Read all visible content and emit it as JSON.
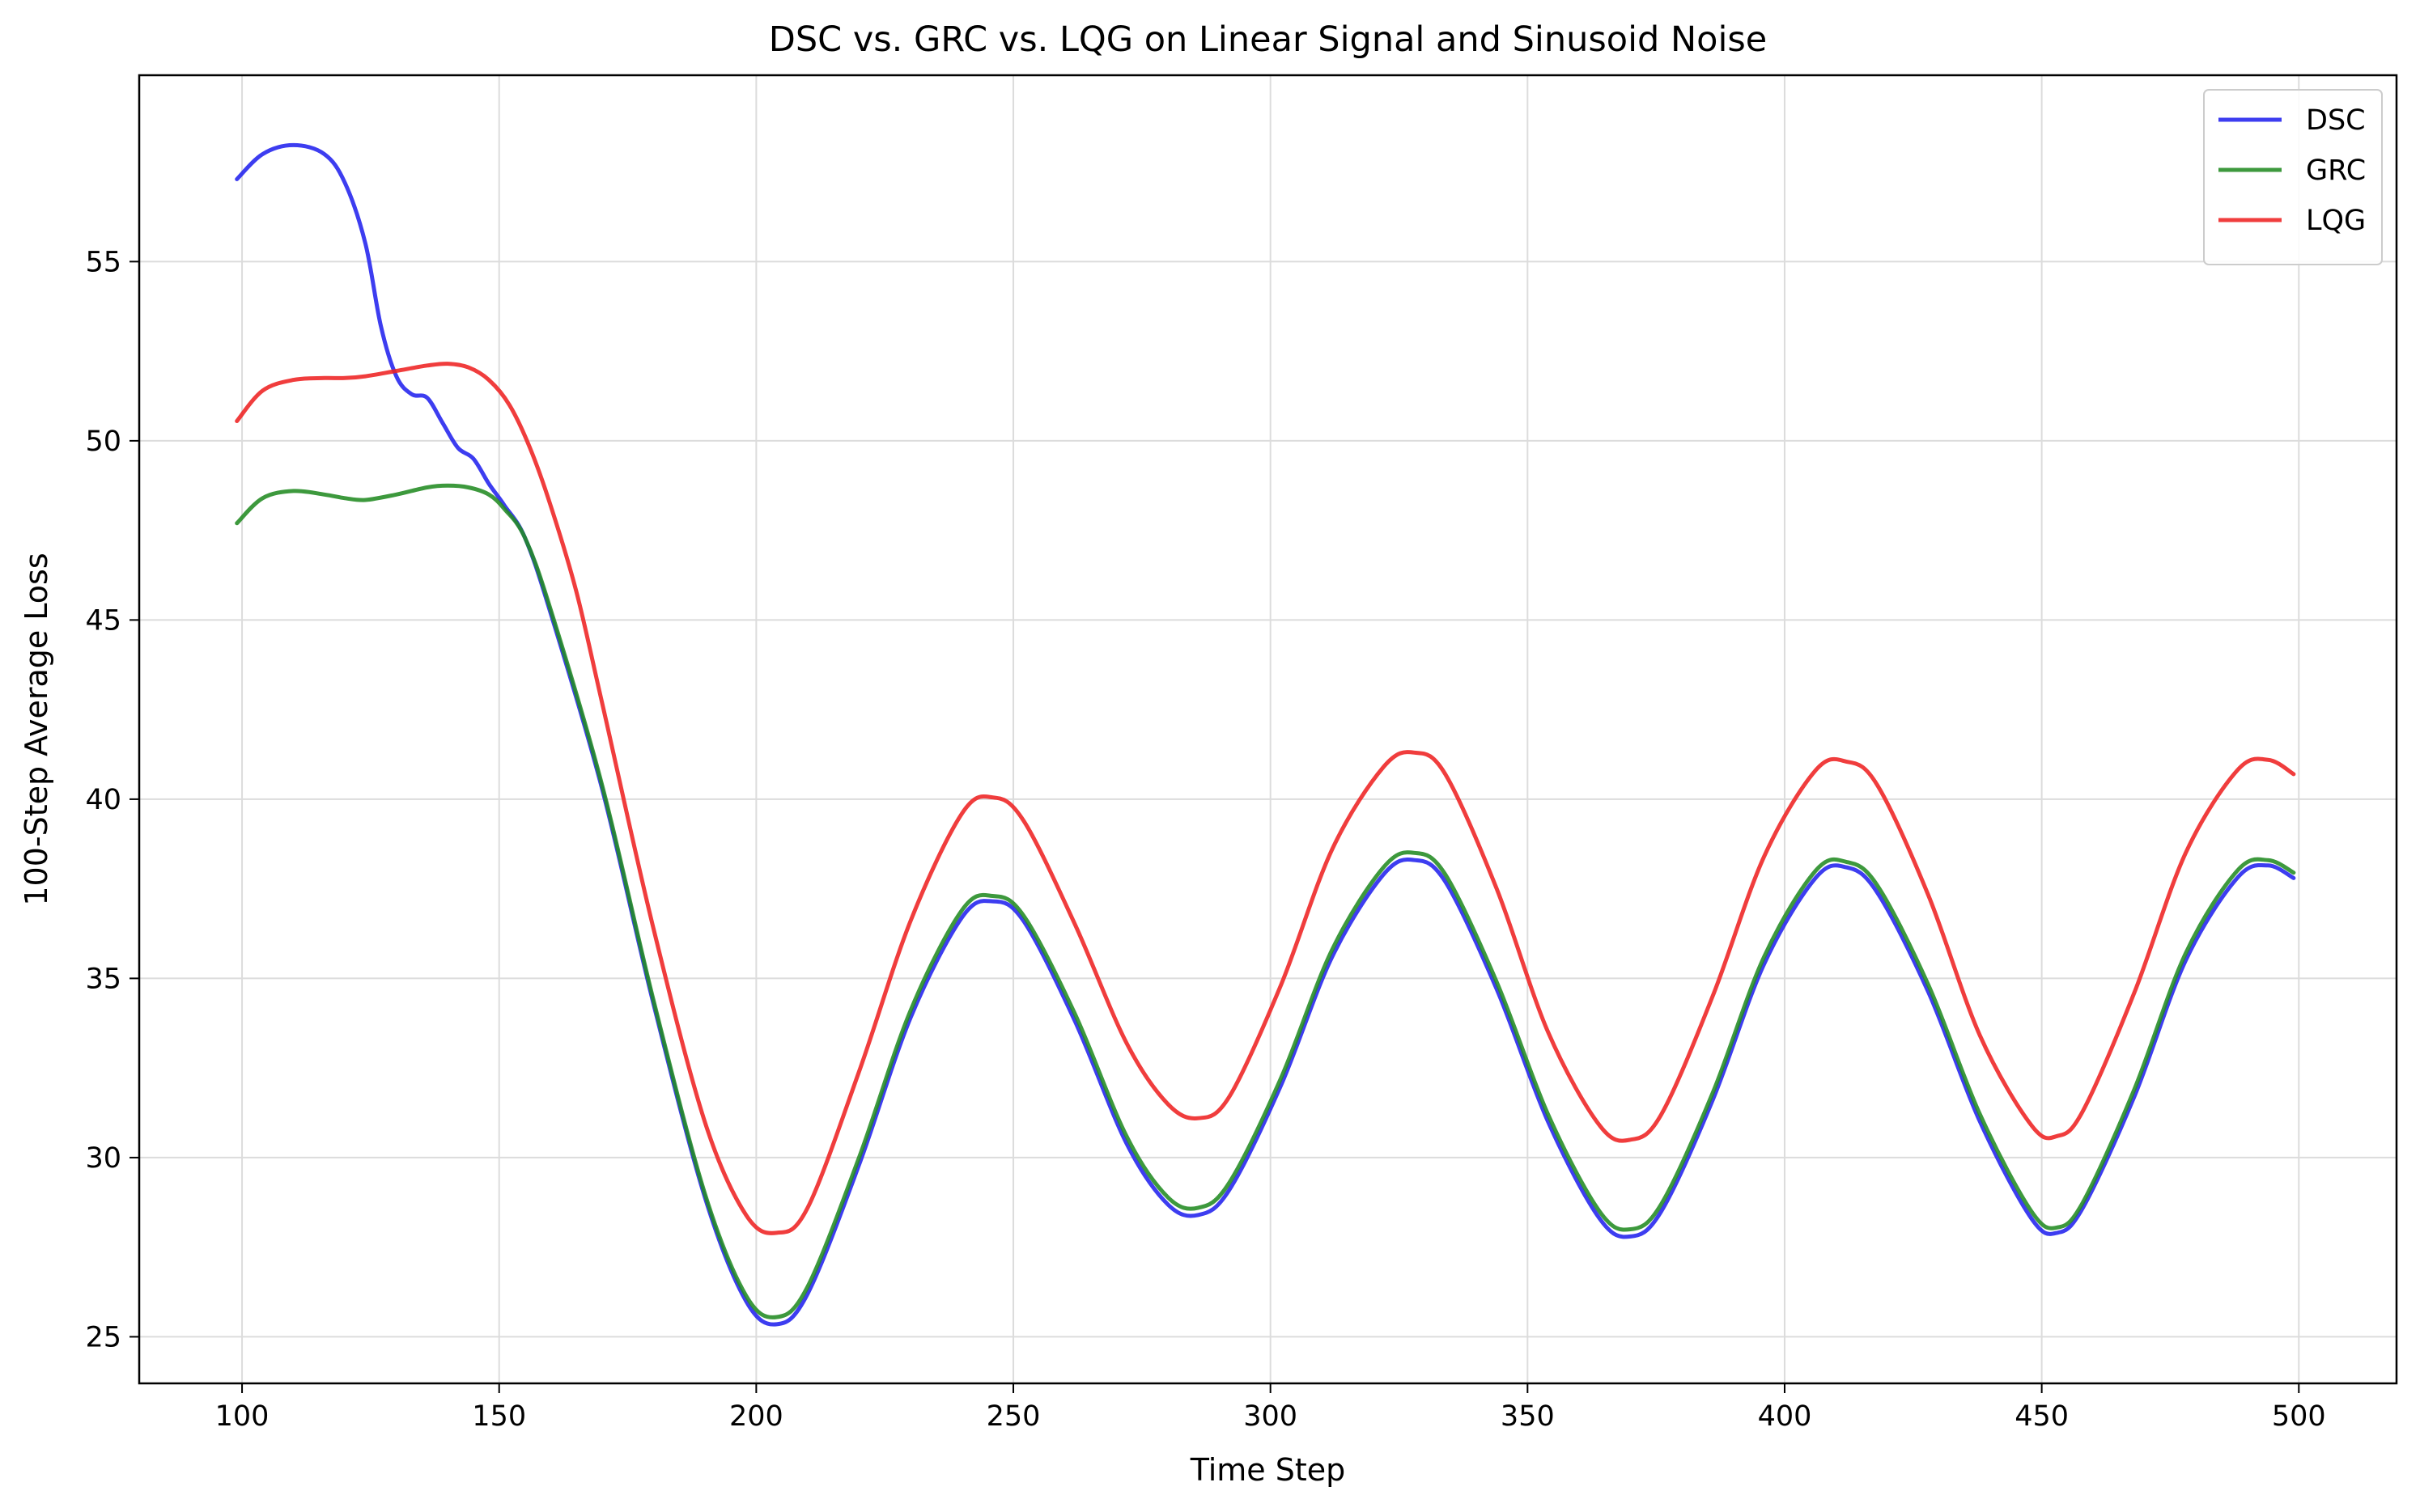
{
  "chart_data": {
    "type": "line",
    "title": "DSC vs. GRC vs. LQG on Linear Signal and Sinusoid Noise",
    "xlabel": "Time Step",
    "ylabel": "100-Step Average Loss",
    "xlim": [
      80,
      519
    ],
    "ylim": [
      23.7,
      60.2
    ],
    "xticks": [
      100,
      150,
      200,
      250,
      300,
      350,
      400,
      450,
      500
    ],
    "yticks": [
      25,
      30,
      35,
      40,
      45,
      50,
      55
    ],
    "grid": true,
    "legend_position": "top-right",
    "series": [
      {
        "name": "DSC",
        "color": "#2222ee",
        "x": [
          99,
          104,
          110,
          116,
          120,
          124,
          127,
          130,
          133,
          136,
          139,
          142,
          145,
          148,
          151,
          155,
          160,
          170,
          180,
          190,
          198,
          204,
          210,
          220,
          230,
          240,
          246,
          252,
          262,
          272,
          280,
          286,
          292,
          302,
          312,
          322,
          328,
          334,
          344,
          354,
          364,
          370,
          376,
          386,
          396,
          406,
          412,
          418,
          428,
          438,
          448,
          453,
          458,
          468,
          478,
          488,
          494,
          499
        ],
        "y": [
          57.3,
          58.0,
          58.25,
          58.0,
          57.2,
          55.5,
          53.2,
          51.8,
          51.3,
          51.2,
          50.5,
          49.8,
          49.5,
          48.8,
          48.2,
          47.3,
          45.2,
          40.3,
          34.3,
          28.9,
          26.0,
          25.35,
          26.2,
          29.8,
          33.9,
          36.7,
          37.15,
          36.6,
          33.8,
          30.4,
          28.7,
          28.4,
          29.1,
          32.0,
          35.6,
          37.9,
          38.3,
          37.7,
          34.7,
          31.0,
          28.3,
          27.8,
          28.5,
          31.6,
          35.4,
          37.8,
          38.1,
          37.4,
          34.6,
          31.0,
          28.3,
          27.9,
          28.6,
          31.7,
          35.5,
          37.8,
          38.15,
          37.8
        ]
      },
      {
        "name": "GRC",
        "color": "#228b22",
        "x": [
          99,
          104,
          110,
          116,
          120,
          124,
          130,
          136,
          140,
          144,
          148,
          151,
          155,
          160,
          170,
          180,
          190,
          198,
          204,
          210,
          220,
          230,
          240,
          246,
          252,
          262,
          272,
          280,
          286,
          292,
          302,
          312,
          322,
          328,
          334,
          344,
          354,
          364,
          370,
          376,
          386,
          396,
          406,
          412,
          418,
          428,
          438,
          448,
          453,
          458,
          468,
          478,
          488,
          494,
          499
        ],
        "y": [
          47.7,
          48.4,
          48.6,
          48.5,
          48.4,
          48.35,
          48.5,
          48.7,
          48.75,
          48.7,
          48.5,
          48.1,
          47.3,
          45.3,
          40.4,
          34.4,
          29.0,
          26.15,
          25.55,
          26.4,
          30.0,
          34.1,
          36.9,
          37.3,
          36.75,
          34.0,
          30.6,
          28.9,
          28.6,
          29.3,
          32.2,
          35.8,
          38.1,
          38.5,
          37.9,
          34.9,
          31.2,
          28.5,
          28.0,
          28.7,
          31.8,
          35.6,
          38.0,
          38.25,
          37.6,
          34.8,
          31.2,
          28.5,
          28.05,
          28.75,
          31.9,
          35.7,
          38.0,
          38.3,
          37.95
        ]
      },
      {
        "name": "LQG",
        "color": "#ee2222",
        "x": [
          99,
          104,
          110,
          116,
          120,
          124,
          130,
          136,
          140,
          144,
          148,
          152,
          156,
          160,
          165,
          170,
          180,
          190,
          198,
          204,
          210,
          220,
          230,
          240,
          246,
          252,
          262,
          272,
          280,
          286,
          292,
          302,
          312,
          322,
          328,
          334,
          344,
          354,
          364,
          370,
          376,
          386,
          396,
          406,
          412,
          418,
          428,
          438,
          448,
          453,
          458,
          468,
          478,
          488,
          494,
          499
        ],
        "y": [
          50.55,
          51.4,
          51.7,
          51.75,
          51.75,
          51.8,
          51.95,
          52.1,
          52.15,
          52.05,
          51.7,
          51.0,
          49.8,
          48.2,
          45.8,
          42.7,
          36.4,
          31.0,
          28.4,
          27.9,
          28.6,
          32.4,
          36.6,
          39.6,
          40.05,
          39.4,
          36.5,
          33.2,
          31.5,
          31.1,
          31.7,
          34.8,
          38.6,
          40.9,
          41.3,
          40.7,
          37.5,
          33.5,
          30.9,
          30.5,
          31.2,
          34.5,
          38.4,
          40.8,
          41.05,
          40.4,
          37.3,
          33.4,
          30.9,
          30.6,
          31.3,
          34.6,
          38.5,
          40.8,
          41.1,
          40.7
        ]
      }
    ]
  }
}
